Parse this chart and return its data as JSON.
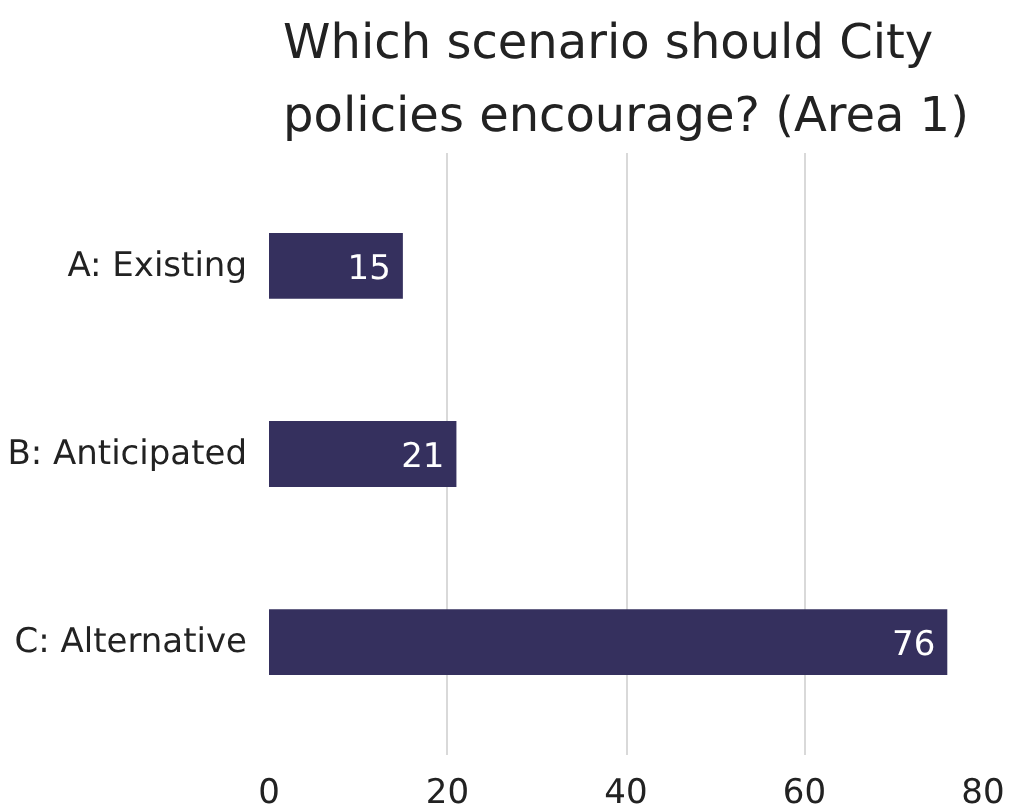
{
  "chart_data": {
    "type": "bar",
    "orientation": "horizontal",
    "title": "Which scenario should City policies encourage? (Area 1)",
    "categories": [
      "A: Existing",
      "B: Anticipated",
      "C: Alternative"
    ],
    "values": [
      15,
      21,
      76
    ],
    "color": "#35305e",
    "xlim": [
      0,
      80
    ],
    "xticks": [
      0,
      20,
      40,
      60,
      80
    ],
    "grid": "x",
    "data_labels": true
  }
}
